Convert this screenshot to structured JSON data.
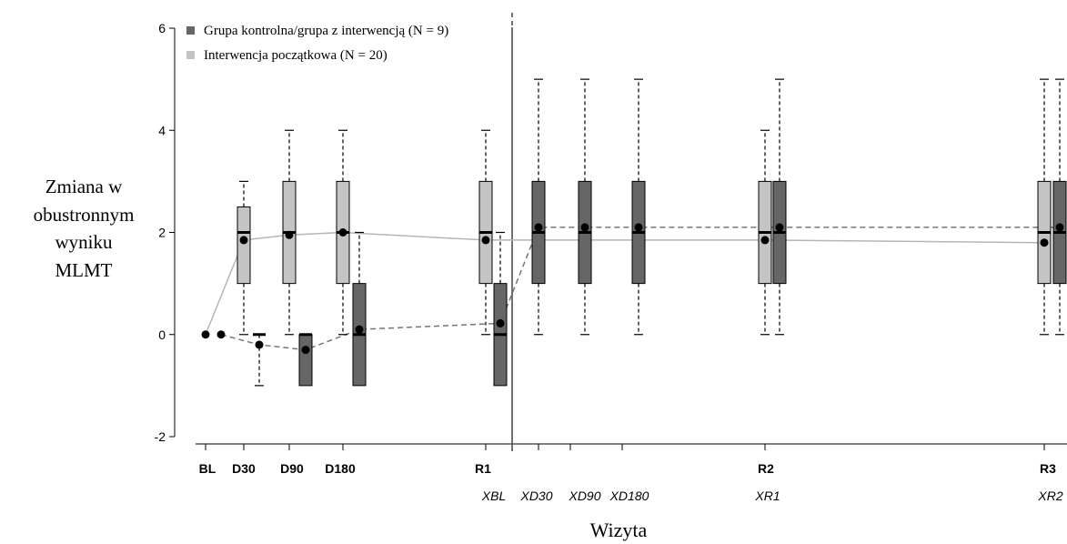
{
  "chart_data": {
    "type": "box",
    "title": "",
    "ylabel": [
      "Zmiana w",
      "obustronnym",
      "wyniku",
      "MLMT"
    ],
    "xlabel": "Wizyta",
    "ylim": [
      -2,
      6
    ],
    "yticks": [
      -2,
      0,
      2,
      4,
      6
    ],
    "xtick_labels_primary": [
      "BL",
      "D30",
      "D90",
      "D180",
      "R1",
      "R2",
      "R3"
    ],
    "xtick_labels_secondary": [
      "XBL",
      "XD30",
      "XD90",
      "XD180",
      "XR1",
      "XR2"
    ],
    "legend": [
      {
        "label": "Grupa kontrolna/grupa z interwencją (N = 9)",
        "color": "#666666"
      },
      {
        "label": "Interwencja początkowa (N = 20)",
        "color": "#c4c4c4"
      }
    ],
    "series": [
      {
        "name": "Interwencja początkowa (N = 20)",
        "color": "#c4c4c4",
        "line_style": "solid",
        "points": [
          {
            "visit": "BL",
            "min": 0,
            "q1": 0,
            "median": 0,
            "q3": 0,
            "max": 0,
            "mean": 0
          },
          {
            "visit": "D30",
            "min": 0,
            "q1": 1,
            "median": 2,
            "q3": 2.5,
            "max": 3,
            "mean": 1.85
          },
          {
            "visit": "D90",
            "min": 0,
            "q1": 1,
            "median": 2,
            "q3": 3,
            "max": 4,
            "mean": 1.95
          },
          {
            "visit": "D180",
            "min": 0,
            "q1": 1,
            "median": 2,
            "q3": 3,
            "max": 4,
            "mean": 2.0
          },
          {
            "visit": "R1",
            "min": 0,
            "q1": 1,
            "median": 2,
            "q3": 3,
            "max": 4,
            "mean": 1.85
          },
          {
            "visit": "R2",
            "min": 0,
            "q1": 1,
            "median": 2,
            "q3": 3,
            "max": 4,
            "mean": 1.85
          },
          {
            "visit": "R3",
            "min": 0,
            "q1": 1,
            "median": 2,
            "q3": 3,
            "max": 5,
            "mean": 1.8
          }
        ]
      },
      {
        "name": "Grupa kontrolna/grupa z interwencją (N = 9)",
        "color": "#666666",
        "line_style": "dashed",
        "points": [
          {
            "visit": "BL",
            "min": 0,
            "q1": 0,
            "median": 0,
            "q3": 0,
            "max": 0,
            "mean": 0
          },
          {
            "visit": "D30",
            "min": -1,
            "q1": 0,
            "median": 0,
            "q3": 0,
            "max": 0,
            "mean": -0.2
          },
          {
            "visit": "D90",
            "min": -1,
            "q1": -1,
            "median": 0,
            "q3": 0,
            "max": 0,
            "mean": -0.3
          },
          {
            "visit": "D180",
            "min": -1,
            "q1": -1,
            "median": 0,
            "q3": 1,
            "max": 2,
            "mean": 0.1
          },
          {
            "visit": "R1 / XBL",
            "min": -1,
            "q1": -1,
            "median": 0,
            "q3": 1,
            "max": 2,
            "mean": 0.22
          },
          {
            "visit": "XD30",
            "min": 0,
            "q1": 1,
            "median": 2,
            "q3": 3,
            "max": 5,
            "mean": 2.1
          },
          {
            "visit": "XD90",
            "min": 0,
            "q1": 1,
            "median": 2,
            "q3": 3,
            "max": 5,
            "mean": 2.1
          },
          {
            "visit": "XD180",
            "min": 0,
            "q1": 1,
            "median": 2,
            "q3": 3,
            "max": 5,
            "mean": 2.1
          },
          {
            "visit": "R2 / XR1",
            "min": 0,
            "q1": 1,
            "median": 2,
            "q3": 3,
            "max": 5,
            "mean": 2.1
          },
          {
            "visit": "R3 / XR2",
            "min": 0,
            "q1": 1,
            "median": 2,
            "q3": 3,
            "max": 5,
            "mean": 2.1
          }
        ]
      }
    ],
    "crossover_line": true
  }
}
